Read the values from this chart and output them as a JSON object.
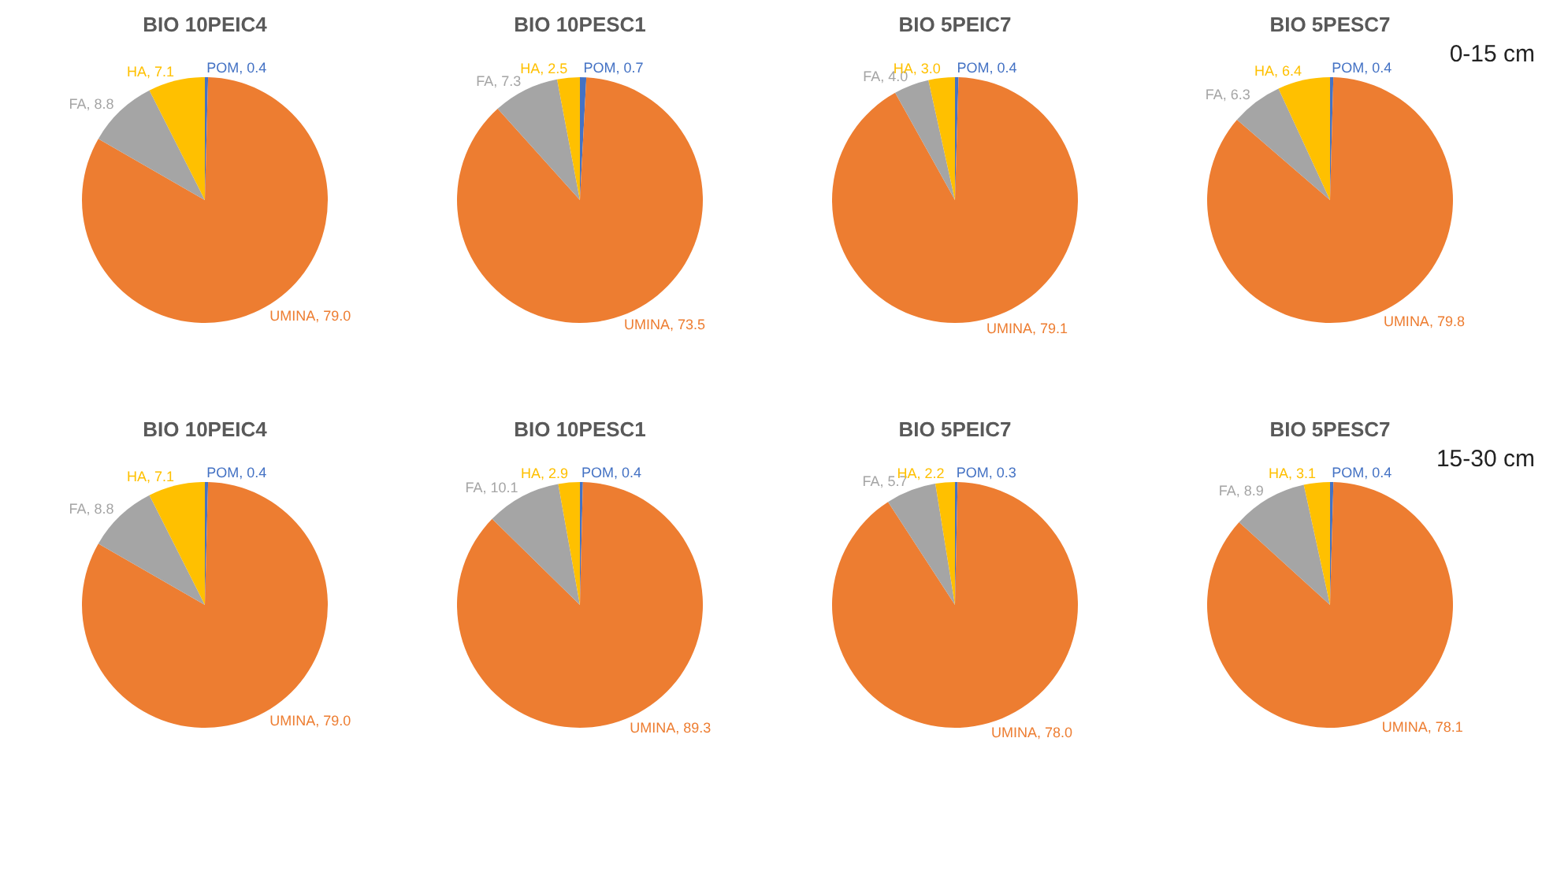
{
  "chart_data": [
    {
      "type": "pie",
      "title": "BIO 10PEIC4",
      "categories": [
        "POM",
        "UMINA",
        "FA",
        "HA"
      ],
      "values": [
        0.4,
        79.0,
        8.8,
        7.1
      ],
      "value_labels": [
        "0.4",
        "79.0",
        "8.8",
        "7.1"
      ],
      "colors": [
        "#4472c4",
        "#ed7d31",
        "#a5a5a5",
        "#ffc000"
      ]
    },
    {
      "type": "pie",
      "title": "BIO 10PESC1",
      "categories": [
        "POM",
        "UMINA",
        "FA",
        "HA"
      ],
      "values": [
        0.7,
        73.5,
        7.3,
        2.5
      ],
      "value_labels": [
        "0.7",
        "73.5",
        "7.3",
        "2.5"
      ],
      "colors": [
        "#4472c4",
        "#ed7d31",
        "#a5a5a5",
        "#ffc000"
      ]
    },
    {
      "type": "pie",
      "title": "BIO 5PEIC7",
      "categories": [
        "POM",
        "UMINA",
        "FA",
        "HA"
      ],
      "values": [
        0.4,
        79.1,
        4.0,
        3.0
      ],
      "value_labels": [
        "0.4",
        "79.1",
        "4.0",
        "3.0"
      ],
      "colors": [
        "#4472c4",
        "#ed7d31",
        "#a5a5a5",
        "#ffc000"
      ]
    },
    {
      "type": "pie",
      "title": "BIO 5PESC7",
      "categories": [
        "POM",
        "UMINA",
        "FA",
        "HA"
      ],
      "values": [
        0.4,
        79.8,
        6.3,
        6.4
      ],
      "value_labels": [
        "0.4",
        "79.8",
        "6.3",
        "6.4"
      ],
      "colors": [
        "#4472c4",
        "#ed7d31",
        "#a5a5a5",
        "#ffc000"
      ],
      "annotations": [
        "0-15 cm"
      ]
    },
    {
      "type": "pie",
      "title": "BIO 10PEIC4",
      "categories": [
        "POM",
        "UMINA",
        "FA",
        "HA"
      ],
      "values": [
        0.4,
        79.0,
        8.8,
        7.1
      ],
      "value_labels": [
        "0.4",
        "79.0",
        "8.8",
        "7.1"
      ],
      "colors": [
        "#4472c4",
        "#ed7d31",
        "#a5a5a5",
        "#ffc000"
      ]
    },
    {
      "type": "pie",
      "title": "BIO 10PESC1",
      "categories": [
        "POM",
        "UMINA",
        "FA",
        "HA"
      ],
      "values": [
        0.4,
        89.3,
        10.1,
        2.9
      ],
      "value_labels": [
        "0.4",
        "89.3",
        "10.1",
        "2.9"
      ],
      "colors": [
        "#4472c4",
        "#ed7d31",
        "#a5a5a5",
        "#ffc000"
      ]
    },
    {
      "type": "pie",
      "title": "BIO 5PEIC7",
      "categories": [
        "POM",
        "UMINA",
        "FA",
        "HA"
      ],
      "values": [
        0.3,
        78.0,
        5.7,
        2.2
      ],
      "value_labels": [
        "0.3",
        "78.0",
        "5.7",
        "2.2"
      ],
      "colors": [
        "#4472c4",
        "#ed7d31",
        "#a5a5a5",
        "#ffc000"
      ]
    },
    {
      "type": "pie",
      "title": "BIO 5PESC7",
      "categories": [
        "POM",
        "UMINA",
        "FA",
        "HA"
      ],
      "values": [
        0.4,
        78.1,
        8.9,
        3.1
      ],
      "value_labels": [
        "0.4",
        "78.1",
        "8.9",
        "3.1"
      ],
      "colors": [
        "#4472c4",
        "#ed7d31",
        "#a5a5a5",
        "#ffc000"
      ],
      "annotations": [
        "15-30 cm"
      ]
    }
  ]
}
